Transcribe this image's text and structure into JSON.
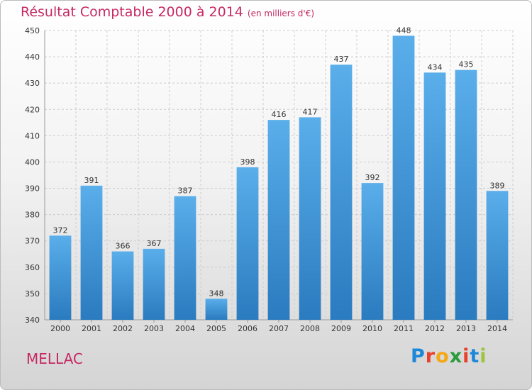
{
  "header": {
    "title": "Résultat Comptable 2000 à 2014",
    "unit": "(en milliers d'€)"
  },
  "footer": {
    "town": "MELLAC",
    "logo": "Proxiti"
  },
  "colors": {
    "title": "#c62a62",
    "bar_top": "#5aaeea",
    "bar_bottom": "#2a7bbf"
  },
  "chart_data": {
    "type": "bar",
    "title": "Résultat Comptable 2000 à 2014",
    "xlabel": "",
    "ylabel": "",
    "categories": [
      "2000",
      "2001",
      "2002",
      "2003",
      "2004",
      "2005",
      "2006",
      "2007",
      "2008",
      "2009",
      "2010",
      "2011",
      "2012",
      "2013",
      "2014"
    ],
    "values": [
      372,
      391,
      366,
      367,
      387,
      348,
      398,
      416,
      417,
      437,
      392,
      448,
      434,
      435,
      389
    ],
    "ylim": [
      340,
      450
    ],
    "yticks": [
      340,
      350,
      360,
      370,
      380,
      390,
      400,
      410,
      420,
      430,
      440,
      450
    ],
    "grid": true,
    "legend": "none"
  }
}
